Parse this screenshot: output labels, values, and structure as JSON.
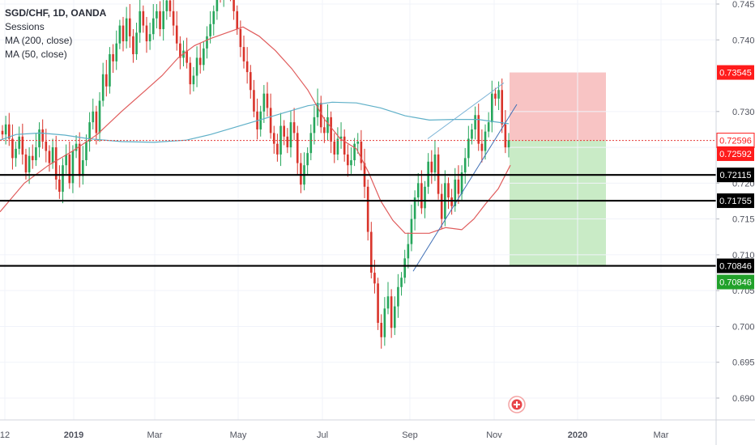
{
  "legend": {
    "symbol": "SGD/CHF, 1D, OANDA",
    "line2": "Sessions",
    "line3": "MA (200, close)",
    "line4": "MA (50, close)"
  },
  "chart_data": {
    "type": "candlestick",
    "symbol": "SGD/CHF",
    "timeframe": "1D",
    "source": "OANDA",
    "ylim": [
      0.6875,
      0.7465
    ],
    "x_axis_labels": [
      "12",
      "2019",
      "Mar",
      "May",
      "Jul",
      "Sep",
      "Nov",
      "2020",
      "Mar"
    ],
    "x_axis_bold": [
      "2019",
      "2020"
    ],
    "y_axis_ticks": [
      "0.74500",
      "0.74000",
      "0.73000",
      "0.72500",
      "0.72000",
      "0.71500",
      "0.71000",
      "0.70500",
      "0.70000",
      "0.69500",
      "0.69000"
    ],
    "y_axis_tick_values": [
      0.745,
      0.74,
      0.73,
      0.725,
      0.72,
      0.715,
      0.71,
      0.705,
      0.7,
      0.695,
      0.69
    ],
    "close_series": [
      0.7268,
      0.7282,
      0.7262,
      0.7235,
      0.7248,
      0.7265,
      0.724,
      0.7215,
      0.7238,
      0.7232,
      0.725,
      0.7275,
      0.7258,
      0.7245,
      0.7228,
      0.725,
      0.7205,
      0.7188,
      0.7225,
      0.724,
      0.72,
      0.7245,
      0.7255,
      0.721,
      0.7232,
      0.7258,
      0.7285,
      0.73,
      0.727,
      0.7315,
      0.7352,
      0.7335,
      0.738,
      0.737,
      0.7395,
      0.742,
      0.7398,
      0.743,
      0.7405,
      0.738,
      0.741,
      0.744,
      0.742,
      0.7398,
      0.7408,
      0.743,
      0.744,
      0.7415,
      0.744,
      0.7455,
      0.744,
      0.742,
      0.7395,
      0.7375,
      0.7385,
      0.7368,
      0.7338,
      0.735,
      0.7375,
      0.7365,
      0.7388,
      0.7405,
      0.7422,
      0.744,
      0.747,
      0.746,
      0.748,
      0.75,
      0.747,
      0.744,
      0.7415,
      0.739,
      0.737,
      0.7355,
      0.733,
      0.73,
      0.7275,
      0.73,
      0.7325,
      0.7305,
      0.727,
      0.7255,
      0.724,
      0.728,
      0.7265,
      0.725,
      0.7285,
      0.727,
      0.7228,
      0.7198,
      0.7225,
      0.7242,
      0.727,
      0.7292,
      0.7312,
      0.7278,
      0.727,
      0.7292,
      0.7258,
      0.724,
      0.7262,
      0.7265,
      0.724,
      0.7225,
      0.7232,
      0.7255,
      0.7258,
      0.7228,
      0.7195,
      0.7132,
      0.7075,
      0.706,
      0.7005,
      0.6985,
      0.7025,
      0.7042,
      0.6998,
      0.7028,
      0.7055,
      0.7068,
      0.7095,
      0.7115,
      0.715,
      0.718,
      0.72,
      0.7165,
      0.7195,
      0.723,
      0.7215,
      0.724,
      0.7185,
      0.715,
      0.72,
      0.718,
      0.7168,
      0.7205,
      0.7185,
      0.7215,
      0.7235,
      0.7262,
      0.7275,
      0.7295,
      0.7255,
      0.7245,
      0.7272,
      0.7285,
      0.7325,
      0.7318,
      0.733,
      0.7282,
      0.725,
      0.726
    ],
    "ma200_points": [
      [
        0,
        0.726
      ],
      [
        20,
        0.7268
      ],
      [
        50,
        0.727
      ],
      [
        80,
        0.7267
      ],
      [
        110,
        0.7262
      ],
      [
        150,
        0.7258
      ],
      [
        190,
        0.7257
      ],
      [
        230,
        0.726
      ],
      [
        260,
        0.7268
      ],
      [
        290,
        0.7278
      ],
      [
        320,
        0.7288
      ],
      [
        350,
        0.7298
      ],
      [
        380,
        0.7308
      ],
      [
        410,
        0.7313
      ],
      [
        440,
        0.7312
      ],
      [
        470,
        0.7305
      ],
      [
        500,
        0.7294
      ],
      [
        530,
        0.7288
      ],
      [
        560,
        0.7289
      ],
      [
        590,
        0.7289
      ],
      [
        615,
        0.7285
      ],
      [
        628,
        0.7283
      ]
    ],
    "ma50_points": [
      [
        0,
        0.716
      ],
      [
        30,
        0.72
      ],
      [
        60,
        0.7225
      ],
      [
        90,
        0.7245
      ],
      [
        120,
        0.7268
      ],
      [
        150,
        0.73
      ],
      [
        180,
        0.733
      ],
      [
        200,
        0.735
      ],
      [
        220,
        0.7375
      ],
      [
        240,
        0.7392
      ],
      [
        260,
        0.7402
      ],
      [
        280,
        0.741
      ],
      [
        300,
        0.7418
      ],
      [
        320,
        0.7405
      ],
      [
        340,
        0.7385
      ],
      [
        360,
        0.736
      ],
      [
        380,
        0.733
      ],
      [
        400,
        0.729
      ],
      [
        420,
        0.7262
      ],
      [
        440,
        0.7248
      ],
      [
        455,
        0.7215
      ],
      [
        470,
        0.7175
      ],
      [
        485,
        0.7148
      ],
      [
        500,
        0.713
      ],
      [
        515,
        0.713
      ],
      [
        530,
        0.713
      ],
      [
        550,
        0.7138
      ],
      [
        570,
        0.7135
      ],
      [
        585,
        0.715
      ],
      [
        600,
        0.7172
      ],
      [
        615,
        0.7192
      ],
      [
        630,
        0.7225
      ]
    ],
    "horizontal_levels": [
      0.72115,
      0.71755,
      0.70846
    ],
    "horizontal_level_labels": [
      "0.72115",
      "0.71755",
      "0.70846"
    ],
    "entry_level": 0.72596,
    "current_price": 0.72592,
    "take_profit": 0.70846,
    "stop_loss": 0.73545,
    "price_labels": {
      "stop_loss": "0.73545",
      "entry": "0.72596",
      "current": "0.72592",
      "level_1": "0.72115",
      "level_2": "0.71755",
      "level_3": "0.70846",
      "take_profit": "0.70846"
    },
    "trendline_upper": [
      [
        528,
        0.7262
      ],
      [
        622,
        0.734
      ]
    ],
    "trendline_lower": [
      [
        510,
        0.7077
      ],
      [
        638,
        0.731
      ]
    ],
    "colors": {
      "bull": "#26a65b",
      "bear": "#d9342b",
      "ma200": "#5fb0c8",
      "ma50": "#e05c5c",
      "stop_zone": "#f8c4c4",
      "profit_zone": "#c9ebc6",
      "entry_line": "#e53935",
      "level_line": "#000000",
      "trendline": "#3f6fb5",
      "trendline_light": "#7ab3d6",
      "label_red": "#ff1b1b",
      "label_green": "#21a12a",
      "label_black": "#000000"
    }
  }
}
